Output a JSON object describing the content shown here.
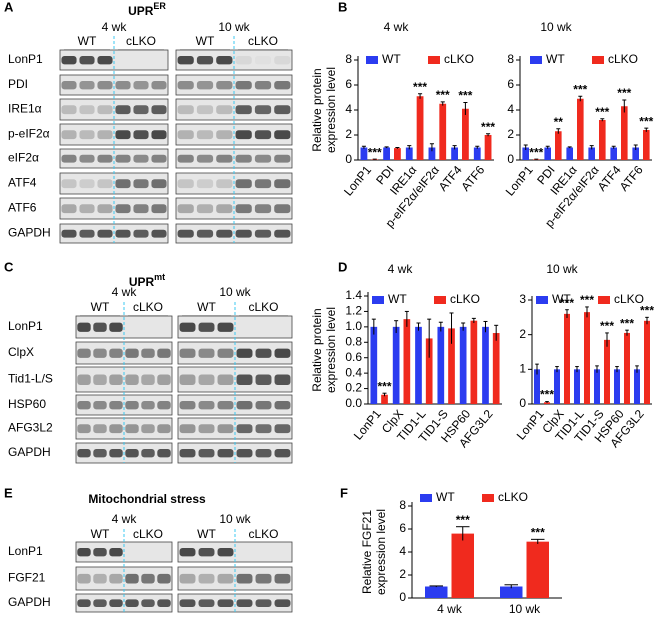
{
  "panel_labels": [
    "A",
    "B",
    "C",
    "D",
    "E",
    "F"
  ],
  "blots": [
    {
      "title": "UPR",
      "title_sup": "ER",
      "timepoints": [
        "4 wk",
        "10 wk"
      ],
      "groups": [
        "WT",
        "cLKO"
      ],
      "rows": [
        "LonP1",
        "PDI",
        "IRE1α",
        "p-eIF2α",
        "eIF2α",
        "ATF4",
        "ATF6",
        "GAPDH"
      ]
    },
    {
      "title": "UPR",
      "title_sup": "mt",
      "timepoints": [
        "4 wk",
        "10 wk"
      ],
      "groups": [
        "WT",
        "cLKO"
      ],
      "rows": [
        "LonP1",
        "ClpX",
        "Tid1-L/S",
        "HSP60",
        "AFG3L2",
        "GAPDH"
      ]
    },
    {
      "title": "Mitochondrial stress",
      "timepoints": [
        "4 wk",
        "10 wk"
      ],
      "groups": [
        "WT",
        "cLKO"
      ],
      "rows": [
        "LonP1",
        "FGF21",
        "GAPDH"
      ]
    }
  ],
  "chart_data": [
    {
      "type": "bar",
      "title": "4 wk",
      "ylabel": [
        "Relative protein",
        "expression level"
      ],
      "categories": [
        "LonP1",
        "PDI",
        "IRE1α",
        "p-eIF2α/eIF2α",
        "ATF4",
        "ATF6"
      ],
      "series": [
        {
          "name": "WT",
          "color": "#2b3cf0",
          "values": [
            1,
            1,
            1,
            1,
            1,
            1
          ],
          "errors": [
            0.1,
            0.05,
            0.15,
            0.3,
            0.15,
            0.1
          ]
        },
        {
          "name": "cLKO",
          "color": "#f02a1e",
          "values": [
            0.05,
            0.95,
            5.1,
            4.5,
            4.1,
            2.0
          ],
          "errors": [
            0.02,
            0.05,
            0.2,
            0.15,
            0.5,
            0.1
          ],
          "significance": [
            "***",
            null,
            "***",
            "***",
            "***",
            "***"
          ]
        }
      ],
      "ylim": [
        0,
        8
      ],
      "yticks": [
        0,
        2,
        4,
        6,
        8
      ]
    },
    {
      "type": "bar",
      "title": "10 wk",
      "categories": [
        "LonP1",
        "PDI",
        "IRE1α",
        "p-eIF2α/eIF2α",
        "ATF4",
        "ATF6"
      ],
      "series": [
        {
          "name": "WT",
          "color": "#2b3cf0",
          "values": [
            1,
            1,
            1,
            1,
            1,
            1
          ],
          "errors": [
            0.2,
            0.1,
            0.05,
            0.15,
            0.1,
            0.2
          ]
        },
        {
          "name": "cLKO",
          "color": "#f02a1e",
          "values": [
            0.05,
            2.3,
            4.9,
            3.2,
            4.3,
            2.4
          ],
          "errors": [
            0.02,
            0.2,
            0.2,
            0.1,
            0.5,
            0.15
          ],
          "significance": [
            "***",
            "**",
            "***",
            "***",
            "***",
            "***"
          ]
        }
      ],
      "ylim": [
        0,
        8
      ],
      "yticks": [
        0,
        2,
        4,
        6,
        8
      ]
    },
    {
      "type": "bar",
      "title": "4 wk",
      "ylabel": [
        "Relative protein",
        "expression level"
      ],
      "categories": [
        "LonP1",
        "ClpX",
        "TID1-L",
        "TID1-S",
        "HSP60",
        "AFG3L2"
      ],
      "series": [
        {
          "name": "WT",
          "color": "#2b3cf0",
          "values": [
            1,
            1,
            1,
            1,
            1,
            1
          ],
          "errors": [
            0.1,
            0.08,
            0.05,
            0.06,
            0.05,
            0.07
          ]
        },
        {
          "name": "cLKO",
          "color": "#f02a1e",
          "values": [
            0.12,
            1.1,
            0.85,
            0.98,
            1.08,
            0.92
          ],
          "errors": [
            0.02,
            0.1,
            0.25,
            0.2,
            0.03,
            0.1
          ],
          "significance": [
            "***",
            null,
            null,
            null,
            null,
            null
          ]
        }
      ],
      "ylim": [
        0,
        1.4
      ],
      "yticks": [
        {
          "value": 0,
          "label": "0.0"
        },
        0.2,
        0.4,
        0.6,
        0.8,
        {
          "value": 1,
          "label": "1.0"
        },
        1.2,
        1.4
      ]
    },
    {
      "type": "bar",
      "title": "10 wk",
      "categories": [
        "LonP1",
        "ClpX",
        "TID1-L",
        "TID1-S",
        "HSP60",
        "AFG3L2"
      ],
      "series": [
        {
          "name": "WT",
          "color": "#2b3cf0",
          "values": [
            1,
            1,
            1,
            1,
            1,
            1
          ],
          "errors": [
            0.15,
            0.08,
            0.08,
            0.1,
            0.08,
            0.1
          ]
        },
        {
          "name": "cLKO",
          "color": "#f02a1e",
          "values": [
            0.05,
            2.6,
            2.65,
            1.85,
            2.05,
            2.4
          ],
          "errors": [
            0.02,
            0.12,
            0.15,
            0.2,
            0.08,
            0.1
          ],
          "significance": [
            "***",
            "***",
            "***",
            "***",
            "***",
            "***"
          ]
        }
      ],
      "ylim": [
        0,
        3
      ],
      "yticks": [
        0,
        1,
        2,
        3
      ]
    },
    {
      "type": "bar",
      "ylabel": [
        "Relative FGF21",
        "expression level"
      ],
      "categories": [
        "4 wk",
        "10 wk"
      ],
      "series": [
        {
          "name": "WT",
          "color": "#2b3cf0",
          "values": [
            1,
            1
          ],
          "errors": [
            0.05,
            0.15
          ]
        },
        {
          "name": "cLKO",
          "color": "#f02a1e",
          "values": [
            5.6,
            4.9
          ],
          "errors": [
            0.6,
            0.2
          ],
          "significance": [
            "***",
            "***"
          ]
        }
      ],
      "ylim": [
        0,
        8
      ],
      "yticks": [
        0,
        2,
        4,
        6,
        8
      ]
    }
  ]
}
